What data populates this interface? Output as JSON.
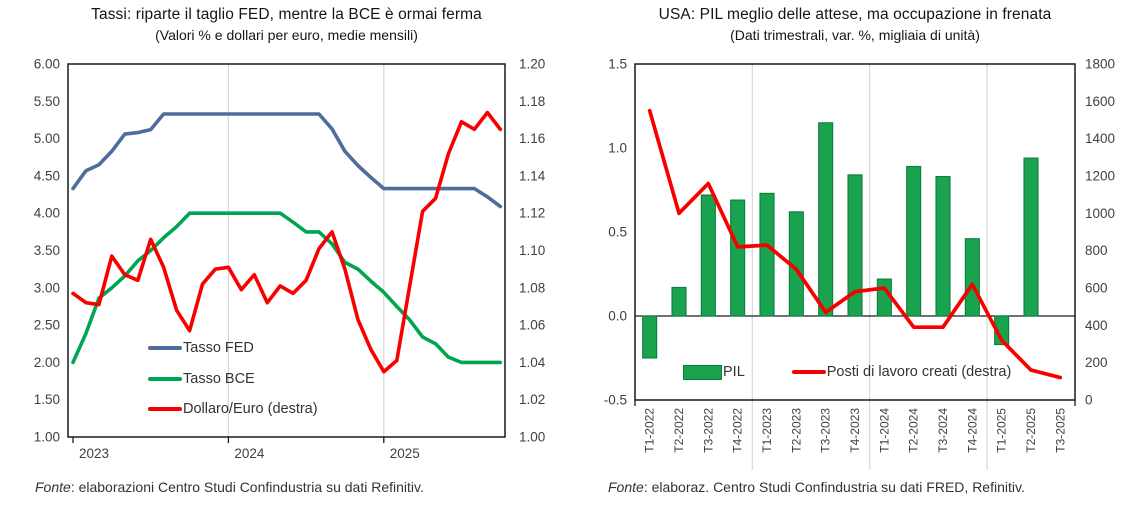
{
  "colors": {
    "fed_line": "#4e6d9c",
    "bce_line": "#00a551",
    "bars_green": "#1aa34f",
    "bars_border": "#0e7e3d",
    "red_line": "#f80000",
    "grid": "#d9d9d9",
    "axis": "#1a1a1a",
    "tick_text": "#404040",
    "title_text": "#14141c"
  },
  "left_chart": {
    "title": "Tassi: riparte il taglio FED, mentre la BCE è ormai ferma",
    "subtitle": "(Valori % e dollari per euro, medie mensili)",
    "fonte_label": "Fonte",
    "fonte_text": ": elaborazioni Centro Studi Confindustria su dati Refinitiv."
  },
  "right_chart": {
    "title": "USA: PIL meglio delle attese, ma occupazione in frenata",
    "subtitle": "(Dati trimestrali, var. %, migliaia di unità)",
    "fonte_label": "Fonte",
    "fonte_text": ": elaboraz. Centro Studi Confindustria su dati FRED, Refinitiv."
  },
  "chart_data": [
    {
      "type": "line",
      "title": "Tassi: riparte il taglio FED, mentre la BCE è ormai ferma",
      "subtitle": "(Valori % e dollari per euro, medie mensili)",
      "x_unit": "month",
      "x_range_label": "gen 2023 - ott 2025",
      "x_ticks": [
        {
          "label": "2023",
          "month": 0
        },
        {
          "label": "2024",
          "month": 12
        },
        {
          "label": "2025",
          "month": 24
        }
      ],
      "left_axis": {
        "min": 1.0,
        "max": 6.0,
        "ticks": [
          "6.00",
          "5.50",
          "5.00",
          "4.50",
          "4.00",
          "3.50",
          "3.00",
          "2.50",
          "2.00",
          "1.50",
          "1.00"
        ]
      },
      "right_axis": {
        "min": 1.0,
        "max": 1.2,
        "ticks": [
          "1.20",
          "1.18",
          "1.16",
          "1.14",
          "1.12",
          "1.10",
          "1.08",
          "1.06",
          "1.04",
          "1.02",
          "1.00"
        ]
      },
      "grid": "vertical-years-only",
      "legend_position": "inside-bottom-left",
      "series": [
        {
          "name": "Tasso FED",
          "axis": "left",
          "color_key": "fed_line",
          "values": [
            4.33,
            4.57,
            4.65,
            4.83,
            5.06,
            5.08,
            5.12,
            5.33,
            5.33,
            5.33,
            5.33,
            5.33,
            5.33,
            5.33,
            5.33,
            5.33,
            5.33,
            5.33,
            5.33,
            5.33,
            5.13,
            4.83,
            4.64,
            4.48,
            4.33,
            4.33,
            4.33,
            4.33,
            4.33,
            4.33,
            4.33,
            4.33,
            4.22,
            4.09
          ]
        },
        {
          "name": "Tasso BCE",
          "axis": "left",
          "color_key": "bce_line",
          "values": [
            2.0,
            2.39,
            2.86,
            3.0,
            3.16,
            3.36,
            3.5,
            3.67,
            3.82,
            4.0,
            4.0,
            4.0,
            4.0,
            4.0,
            4.0,
            4.0,
            4.0,
            3.88,
            3.75,
            3.75,
            3.59,
            3.34,
            3.25,
            3.09,
            2.94,
            2.75,
            2.57,
            2.34,
            2.25,
            2.07,
            2.0,
            2.0,
            2.0,
            2.0
          ]
        },
        {
          "name": "Dollaro/Euro (destra)",
          "axis": "right",
          "color_key": "red_line",
          "values": [
            1.077,
            1.072,
            1.071,
            1.097,
            1.087,
            1.084,
            1.106,
            1.091,
            1.068,
            1.057,
            1.082,
            1.09,
            1.091,
            1.079,
            1.087,
            1.072,
            1.081,
            1.077,
            1.084,
            1.101,
            1.11,
            1.09,
            1.063,
            1.047,
            1.035,
            1.041,
            1.081,
            1.121,
            1.128,
            1.152,
            1.169,
            1.165,
            1.174,
            1.165
          ]
        }
      ]
    },
    {
      "type": "bar+line",
      "title": "USA: PIL meglio delle attese, ma occupazione in frenata",
      "subtitle": "(Dati trimestrali, var. %, migliaia di unità)",
      "categories": [
        "T1-2022",
        "T2-2022",
        "T3-2022",
        "T4-2022",
        "T1-2023",
        "T2-2023",
        "T3-2023",
        "T4-2023",
        "T1-2024",
        "T2-2024",
        "T3-2024",
        "T4-2024",
        "T1-2025",
        "T2-2025",
        "T3-2025"
      ],
      "left_axis": {
        "min": -0.5,
        "max": 1.5,
        "ticks": [
          "1.5",
          "1.0",
          "0.5",
          "0.0",
          "-0.5"
        ]
      },
      "right_axis": {
        "min": 0,
        "max": 1800,
        "ticks": [
          "1800",
          "1600",
          "1400",
          "1200",
          "1000",
          "800",
          "600",
          "400",
          "200",
          "0"
        ]
      },
      "year_separators_after": [
        3,
        7,
        11
      ],
      "grid": "vertical-years-only",
      "legend_position": "inside-bottom",
      "series": [
        {
          "name": "PIL",
          "type": "bar",
          "axis": "left",
          "color_key": "bars_green",
          "values": [
            -0.25,
            0.17,
            0.72,
            0.69,
            0.73,
            0.62,
            1.15,
            0.84,
            0.22,
            0.89,
            0.83,
            0.46,
            -0.17,
            0.94,
            null
          ]
        },
        {
          "name": "Posti di lavoro creati (destra)",
          "type": "line",
          "axis": "right",
          "color_key": "red_line",
          "values": [
            1550,
            1000,
            1160,
            820,
            830,
            700,
            470,
            580,
            600,
            390,
            390,
            620,
            320,
            160,
            120
          ]
        }
      ]
    }
  ]
}
